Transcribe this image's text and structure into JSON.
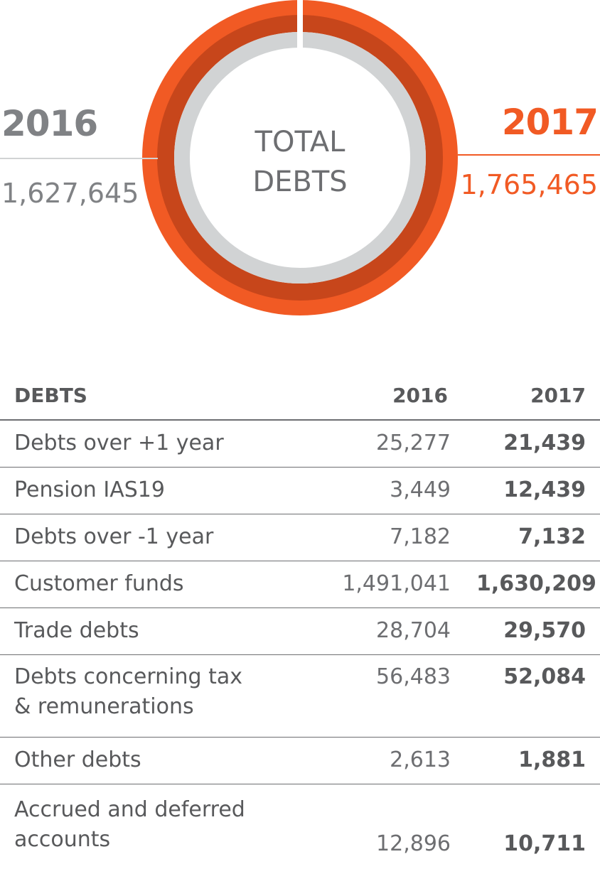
{
  "chart_data": {
    "type": "pie",
    "title": "TOTAL DEBTS",
    "title_lines": [
      "TOTAL",
      "DEBTS"
    ],
    "series": [
      {
        "name": "2016",
        "value_label": "1,627,645",
        "value": 1627645,
        "color": "#d1d3d4"
      },
      {
        "name": "2017",
        "value_label": "1,765,465",
        "value": 1765465,
        "color": "#f15a24"
      }
    ],
    "inner_ring_color": "#c7461b",
    "gap_color": "#ffffff"
  },
  "table": {
    "headers": [
      "DEBTS",
      "2016",
      "2017"
    ],
    "rows": [
      {
        "label": "Debts over +1 year",
        "v2016": "25,277",
        "v2017": "21,439"
      },
      {
        "label": "Pension IAS19",
        "v2016": "3,449",
        "v2017": "12,439"
      },
      {
        "label": "Debts over -1 year",
        "v2016": "7,182",
        "v2017": "7,132"
      },
      {
        "label": "Customer funds",
        "v2016": "1,491,041",
        "v2017": "1,630,209"
      },
      {
        "label": "Trade debts",
        "v2016": "28,704",
        "v2017": "29,570"
      },
      {
        "label": "Debts concerning tax & remunerations",
        "label_lines": [
          "Debts concerning tax",
          "& remunerations"
        ],
        "v2016": "56,483",
        "v2017": "52,084"
      },
      {
        "label": "Other debts",
        "v2016": "2,613",
        "v2017": "1,881"
      },
      {
        "label": "Accrued and deferred accounts",
        "label_lines": [
          "Accrued and deferred",
          "accounts"
        ],
        "v2016": "12,896",
        "v2017": "10,711"
      }
    ]
  }
}
